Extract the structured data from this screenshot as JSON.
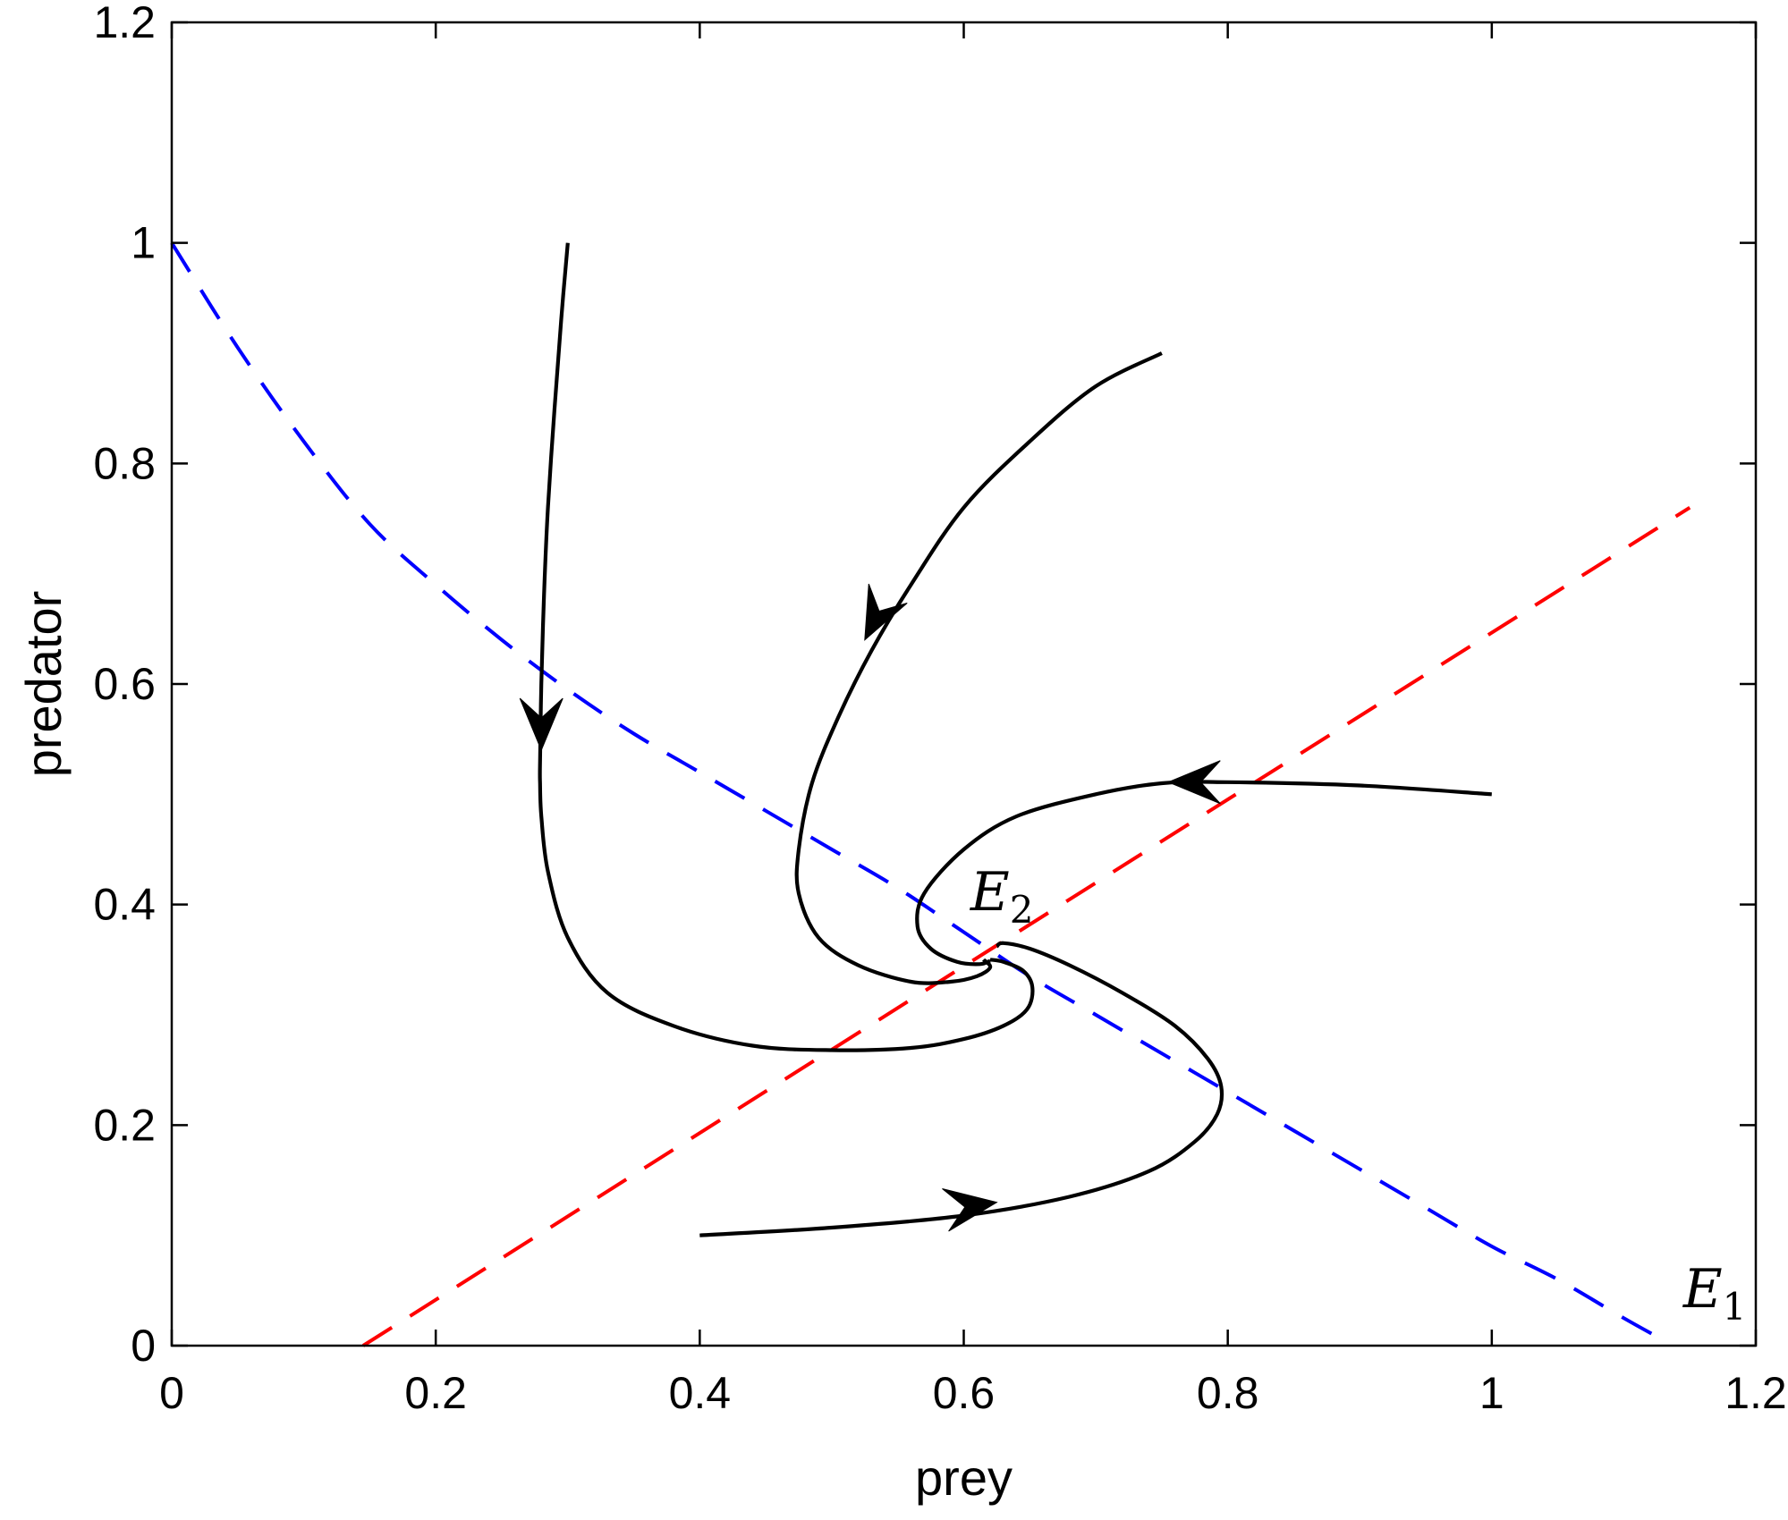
{
  "chart_data": {
    "type": "line",
    "title": "",
    "xlabel": "prey",
    "ylabel": "predator",
    "xlim": [
      0,
      1.2
    ],
    "ylim": [
      0,
      1.2
    ],
    "xticks": [
      "0",
      "0.2",
      "0.4",
      "0.6",
      "0.8",
      "1",
      "1.2"
    ],
    "xtick_values": [
      0,
      0.2,
      0.4,
      0.6,
      0.8,
      1.0,
      1.2
    ],
    "yticks": [
      "0",
      "0.2",
      "0.4",
      "0.6",
      "0.8",
      "1",
      "1.2"
    ],
    "ytick_values": [
      0,
      0.2,
      0.4,
      0.6,
      0.8,
      1.0,
      1.2
    ],
    "grid": false,
    "series": [
      {
        "style": "dashed",
        "color": "#0000ff",
        "x": [
          0,
          0.05,
          0.1,
          0.15,
          0.2,
          0.25,
          0.3,
          0.35,
          0.4,
          0.45,
          0.5,
          0.55,
          0.6,
          0.65,
          0.7,
          0.75,
          0.8,
          0.85,
          0.9,
          0.95,
          1.0,
          1.05,
          1.1,
          1.13
        ],
        "y": [
          1.0,
          0.905,
          0.82,
          0.745,
          0.69,
          0.64,
          0.595,
          0.555,
          0.52,
          0.485,
          0.45,
          0.415,
          0.375,
          0.335,
          0.3,
          0.265,
          0.23,
          0.195,
          0.16,
          0.125,
          0.09,
          0.06,
          0.025,
          0.005
        ]
      },
      {
        "style": "dashed",
        "color": "#ff0000",
        "x": [
          0.145,
          1.15
        ],
        "y": [
          0.0,
          0.76
        ]
      },
      {
        "style": "solid",
        "color": "#000000",
        "x": [
          0.3,
          0.295,
          0.29,
          0.285,
          0.282,
          0.28,
          0.279,
          0.279,
          0.28,
          0.285,
          0.3,
          0.33,
          0.38,
          0.44,
          0.5,
          0.56,
          0.6,
          0.63,
          0.648,
          0.652,
          0.645,
          0.63,
          0.62
        ],
        "y": [
          1.0,
          0.93,
          0.85,
          0.76,
          0.68,
          0.6,
          0.53,
          0.51,
          0.48,
          0.43,
          0.37,
          0.32,
          0.29,
          0.272,
          0.268,
          0.27,
          0.278,
          0.29,
          0.305,
          0.325,
          0.34,
          0.348,
          0.35
        ]
      },
      {
        "style": "solid",
        "color": "#000000",
        "x": [
          0.75,
          0.7,
          0.65,
          0.6,
          0.56,
          0.53,
          0.505,
          0.485,
          0.475,
          0.475,
          0.49,
          0.52,
          0.56,
          0.59,
          0.61,
          0.62,
          0.615
        ],
        "y": [
          0.9,
          0.87,
          0.82,
          0.76,
          0.69,
          0.63,
          0.57,
          0.51,
          0.45,
          0.41,
          0.37,
          0.345,
          0.33,
          0.33,
          0.335,
          0.343,
          0.35
        ]
      },
      {
        "style": "solid",
        "color": "#000000",
        "x": [
          1.0,
          0.9,
          0.8,
          0.75,
          0.7,
          0.64,
          0.6,
          0.57,
          0.565,
          0.575,
          0.595,
          0.612,
          0.62
        ],
        "y": [
          0.5,
          0.508,
          0.511,
          0.51,
          0.5,
          0.48,
          0.45,
          0.41,
          0.38,
          0.36,
          0.348,
          0.346,
          0.349
        ]
      },
      {
        "style": "solid",
        "color": "#000000",
        "x": [
          0.4,
          0.5,
          0.6,
          0.68,
          0.74,
          0.775,
          0.792,
          0.795,
          0.785,
          0.76,
          0.72,
          0.68,
          0.65,
          0.63,
          0.625
        ],
        "y": [
          0.1,
          0.107,
          0.118,
          0.135,
          0.158,
          0.185,
          0.21,
          0.235,
          0.26,
          0.29,
          0.32,
          0.345,
          0.36,
          0.365,
          0.362
        ]
      }
    ],
    "arrows": [
      {
        "x": 0.28,
        "y": 0.54,
        "dx": 0.0,
        "dy": -1.0
      },
      {
        "x": 0.525,
        "y": 0.64,
        "dx": -0.5,
        "dy": -1.0
      },
      {
        "x": 0.755,
        "y": 0.511,
        "dx": -1.0,
        "dy": 0.0
      },
      {
        "x": 0.625,
        "y": 0.13,
        "dx": 1.0,
        "dy": 0.15
      }
    ],
    "annotations": [
      {
        "label": "E",
        "sub": "2",
        "x": 0.605,
        "y": 0.395
      },
      {
        "label": "E",
        "sub": "1",
        "x": 1.145,
        "y": 0.035
      }
    ]
  }
}
